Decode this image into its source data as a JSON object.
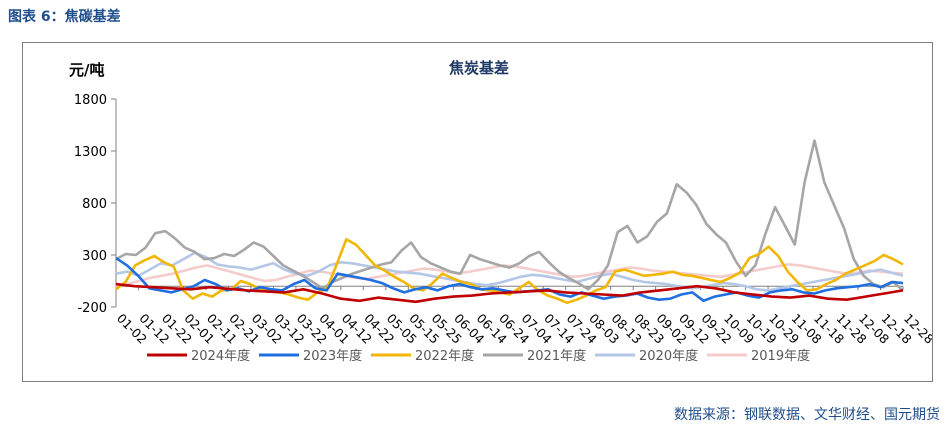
{
  "figure": {
    "caption": "图表 6：焦碳基差",
    "source": "数据来源：钢联数据、文华财经、国元期货"
  },
  "chart_data": {
    "type": "line",
    "title": "焦炭基差",
    "ylabel": "元/吨",
    "ylim": [
      -200,
      1800
    ],
    "yticks": [
      -200,
      300,
      800,
      1300,
      1800
    ],
    "x_tick_labels": [
      "01-02",
      "01-12",
      "01-22",
      "02-01",
      "02-11",
      "02-21",
      "03-02",
      "03-12",
      "03-22",
      "04-01",
      "04-12",
      "04-22",
      "05-05",
      "05-15",
      "05-25",
      "06-04",
      "06-14",
      "06-24",
      "07-04",
      "07-14",
      "07-24",
      "08-03",
      "08-13",
      "08-23",
      "09-02",
      "09-12",
      "09-22",
      "10-09",
      "10-19",
      "10-29",
      "11-08",
      "11-18",
      "11-28",
      "12-08",
      "12-18",
      "12-28"
    ],
    "legend_position": "bottom",
    "grid": false,
    "series": [
      {
        "name": "2024年度",
        "color": "#c00000",
        "values": [
          20,
          0,
          -10,
          -20,
          -30,
          -10,
          -25,
          -40,
          -50,
          -60,
          -30,
          -70,
          -120,
          -140,
          -110,
          -130,
          -150,
          -120,
          -100,
          -90,
          -70,
          -60,
          -50,
          -40,
          -60,
          -70,
          -80,
          -90,
          -60,
          -40,
          -20,
          0,
          -20,
          -60,
          -80,
          -100,
          -110,
          -90,
          -120,
          -130,
          -100,
          -70,
          -40
        ]
      },
      {
        "name": "2023年度",
        "color": "#1f6fe0",
        "values": [
          270,
          200,
          100,
          -20,
          -40,
          -60,
          -30,
          0,
          60,
          20,
          -40,
          -20,
          -50,
          -10,
          -30,
          -40,
          20,
          60,
          -20,
          -40,
          120,
          100,
          80,
          60,
          30,
          -20,
          -60,
          -30,
          -10,
          -40,
          0,
          20,
          -10,
          -30,
          -20,
          -40,
          -60,
          -50,
          -40,
          -30,
          -80,
          -100,
          -60,
          -90,
          -120,
          -100,
          -90,
          -70,
          -110,
          -130,
          -120,
          -80,
          -60,
          -140,
          -100,
          -80,
          -60,
          -90,
          -110,
          -60,
          -40,
          -30,
          -60,
          -70,
          -40,
          -20,
          -10,
          0,
          20,
          -10,
          40,
          30
        ]
      },
      {
        "name": "2022年度",
        "color": "#f2b705",
        "values": [
          -30,
          40,
          200,
          250,
          290,
          230,
          190,
          -40,
          -120,
          -70,
          -100,
          -40,
          -30,
          50,
          20,
          -30,
          -50,
          -60,
          -80,
          -110,
          -130,
          -60,
          -20,
          210,
          450,
          400,
          300,
          200,
          150,
          90,
          40,
          -20,
          -40,
          30,
          120,
          80,
          40,
          20,
          -30,
          -40,
          -60,
          -80,
          -20,
          40,
          -40,
          -90,
          -120,
          -160,
          -130,
          -90,
          -40,
          -10,
          140,
          160,
          130,
          100,
          110,
          120,
          140,
          110,
          100,
          80,
          60,
          40,
          80,
          130,
          270,
          310,
          380,
          290,
          140,
          40,
          -40,
          -30,
          20,
          60,
          120,
          160,
          200,
          240,
          300,
          260,
          210
        ]
      },
      {
        "name": "2021年度",
        "color": "#a6a6a6",
        "values": [
          260,
          310,
          300,
          370,
          510,
          530,
          460,
          370,
          330,
          260,
          270,
          310,
          290,
          350,
          420,
          380,
          290,
          200,
          150,
          100,
          40,
          -20,
          40,
          80,
          120,
          150,
          180,
          210,
          230,
          340,
          420,
          280,
          220,
          180,
          140,
          120,
          300,
          260,
          230,
          200,
          180,
          220,
          290,
          330,
          230,
          140,
          80,
          30,
          -30,
          60,
          200,
          520,
          580,
          420,
          480,
          620,
          700,
          980,
          900,
          780,
          600,
          500,
          420,
          240,
          100,
          200,
          500,
          760,
          580,
          400,
          1000,
          1400,
          1000,
          780,
          560,
          260,
          100,
          20,
          -10,
          40,
          -40
        ]
      },
      {
        "name": "2020年度",
        "color": "#b4c7e7",
        "values": [
          120,
          140,
          100,
          160,
          220,
          200,
          260,
          320,
          280,
          210,
          190,
          180,
          160,
          190,
          220,
          160,
          120,
          100,
          140,
          200,
          230,
          220,
          200,
          180,
          160,
          140,
          130,
          120,
          100,
          80,
          60,
          40,
          20,
          10,
          30,
          60,
          90,
          110,
          100,
          80,
          60,
          40,
          70,
          100,
          120,
          90,
          60,
          40,
          30,
          20,
          0,
          -20,
          -10,
          10,
          30,
          20,
          0,
          -30,
          -40,
          -20,
          0,
          20,
          40,
          60,
          80,
          100,
          120,
          140,
          160,
          130,
          100
        ]
      },
      {
        "name": "2019年度",
        "color": "#f4cccc",
        "values": [
          0,
          20,
          50,
          80,
          100,
          120,
          150,
          180,
          200,
          170,
          140,
          110,
          80,
          50,
          60,
          90,
          120,
          150,
          140,
          120,
          100,
          80,
          70,
          90,
          110,
          130,
          150,
          170,
          160,
          140,
          120,
          140,
          160,
          180,
          200,
          190,
          170,
          150,
          130,
          110,
          90,
          100,
          120,
          140,
          160,
          180,
          170,
          150,
          140,
          130,
          120,
          110,
          100,
          90,
          110,
          130,
          150,
          170,
          190,
          210,
          200,
          180,
          160,
          140,
          120,
          130,
          150,
          140,
          130,
          120
        ]
      }
    ]
  }
}
